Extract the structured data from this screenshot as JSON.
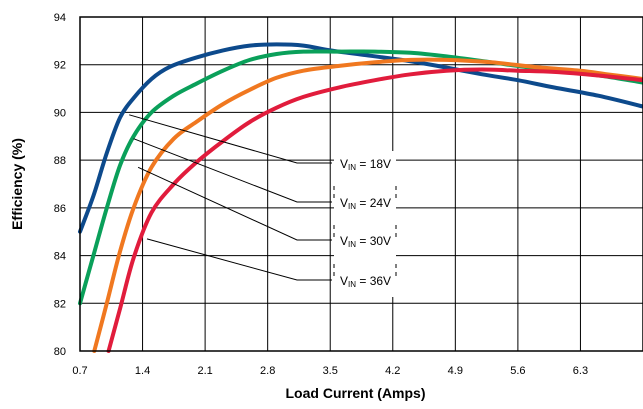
{
  "chart_data": {
    "type": "line",
    "title": "",
    "xlabel": "Load Current (Amps)",
    "ylabel": "Efficiency (%)",
    "xlim": [
      0.7,
      7.0
    ],
    "ylim": [
      80,
      94
    ],
    "xticks": [
      "0.7",
      "1.4",
      "2.1",
      "2.8",
      "3.5",
      "4.2",
      "4.9",
      "5.6",
      "6.3"
    ],
    "yticks": [
      "80",
      "82",
      "84",
      "86",
      "88",
      "90",
      "92",
      "94"
    ],
    "grid": true,
    "series": [
      {
        "name": "VIN = 18V",
        "label_main": "V",
        "label_sub": "IN",
        "label_rest": " = 18V",
        "color": "#0d4a8c",
        "anchor": [
          1.25,
          89.9
        ],
        "points": [
          [
            0.7,
            85.0
          ],
          [
            0.85,
            86.5
          ],
          [
            1.0,
            88.3
          ],
          [
            1.15,
            89.8
          ],
          [
            1.3,
            90.6
          ],
          [
            1.5,
            91.4
          ],
          [
            1.7,
            91.9
          ],
          [
            2.0,
            92.3
          ],
          [
            2.3,
            92.6
          ],
          [
            2.6,
            92.8
          ],
          [
            2.9,
            92.85
          ],
          [
            3.2,
            92.8
          ],
          [
            3.5,
            92.6
          ],
          [
            3.9,
            92.4
          ],
          [
            4.3,
            92.2
          ],
          [
            4.7,
            91.95
          ],
          [
            5.2,
            91.6
          ],
          [
            5.6,
            91.35
          ],
          [
            6.0,
            91.05
          ],
          [
            6.5,
            90.7
          ],
          [
            7.0,
            90.25
          ]
        ]
      },
      {
        "name": "VIN = 24V",
        "label_main": "V",
        "label_sub": "IN",
        "label_rest": " = 24V",
        "color": "#0aa05a",
        "anchor": [
          1.3,
          88.9
        ],
        "points": [
          [
            0.7,
            82.0
          ],
          [
            0.85,
            84.0
          ],
          [
            1.0,
            86.0
          ],
          [
            1.15,
            87.8
          ],
          [
            1.3,
            89.0
          ],
          [
            1.5,
            90.0
          ],
          [
            1.75,
            90.7
          ],
          [
            2.0,
            91.2
          ],
          [
            2.3,
            91.75
          ],
          [
            2.6,
            92.2
          ],
          [
            2.9,
            92.45
          ],
          [
            3.2,
            92.55
          ],
          [
            3.6,
            92.55
          ],
          [
            4.0,
            92.55
          ],
          [
            4.4,
            92.5
          ],
          [
            4.8,
            92.35
          ],
          [
            5.3,
            92.1
          ],
          [
            5.8,
            91.85
          ],
          [
            6.3,
            91.65
          ],
          [
            6.6,
            91.5
          ],
          [
            7.0,
            91.25
          ]
        ]
      },
      {
        "name": "VIN = 30V",
        "label_main": "V",
        "label_sub": "IN",
        "label_rest": " = 30V",
        "color": "#f07820",
        "anchor": [
          1.35,
          87.7
        ],
        "points": [
          [
            0.86,
            80.0
          ],
          [
            1.0,
            82.0
          ],
          [
            1.15,
            84.2
          ],
          [
            1.3,
            86.0
          ],
          [
            1.5,
            87.7
          ],
          [
            1.75,
            88.9
          ],
          [
            2.0,
            89.6
          ],
          [
            2.3,
            90.35
          ],
          [
            2.6,
            90.95
          ],
          [
            2.9,
            91.45
          ],
          [
            3.2,
            91.75
          ],
          [
            3.6,
            91.95
          ],
          [
            4.0,
            92.1
          ],
          [
            4.4,
            92.2
          ],
          [
            4.8,
            92.2
          ],
          [
            5.3,
            92.1
          ],
          [
            5.8,
            91.9
          ],
          [
            6.3,
            91.75
          ],
          [
            6.6,
            91.6
          ],
          [
            7.0,
            91.4
          ]
        ]
      },
      {
        "name": "VIN = 36V",
        "label_main": "V",
        "label_sub": "IN",
        "label_rest": " = 36V",
        "color": "#e11c3c",
        "anchor": [
          1.45,
          84.7
        ],
        "points": [
          [
            1.02,
            80.0
          ],
          [
            1.15,
            81.8
          ],
          [
            1.3,
            83.9
          ],
          [
            1.5,
            85.8
          ],
          [
            1.75,
            87.0
          ],
          [
            2.0,
            87.9
          ],
          [
            2.3,
            88.8
          ],
          [
            2.6,
            89.6
          ],
          [
            2.9,
            90.2
          ],
          [
            3.2,
            90.65
          ],
          [
            3.6,
            91.05
          ],
          [
            4.0,
            91.35
          ],
          [
            4.4,
            91.6
          ],
          [
            4.8,
            91.75
          ],
          [
            5.2,
            91.8
          ],
          [
            5.6,
            91.75
          ],
          [
            6.0,
            91.7
          ],
          [
            6.5,
            91.55
          ],
          [
            7.0,
            91.35
          ]
        ]
      }
    ]
  }
}
